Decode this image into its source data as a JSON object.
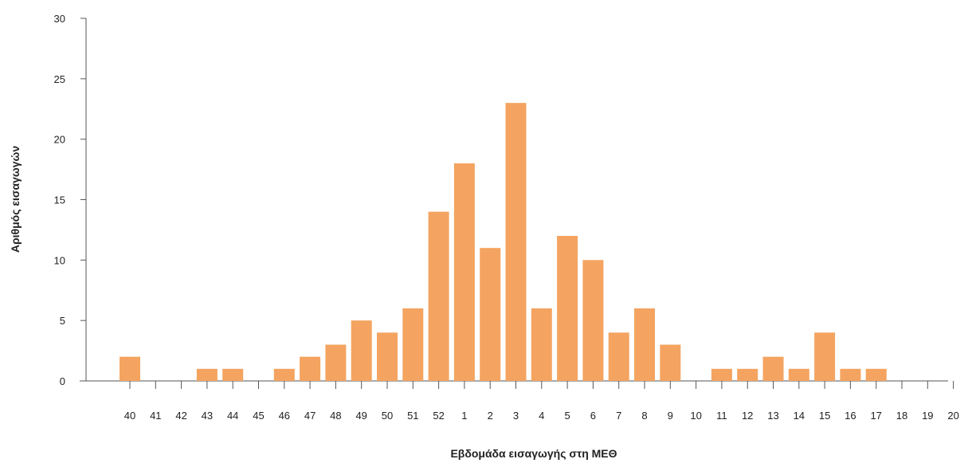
{
  "chart_data": {
    "type": "bar",
    "xlabel": "Εβδομάδα εισαγωγής στη ΜΕΘ",
    "ylabel": "Αριθμός εισαγωγών",
    "ylim": [
      0,
      30
    ],
    "yticks": [
      0,
      5,
      10,
      15,
      20,
      25,
      30
    ],
    "grid": false,
    "bar_color": "#F4A460",
    "categories": [
      "40",
      "41",
      "42",
      "43",
      "44",
      "45",
      "46",
      "47",
      "48",
      "49",
      "50",
      "51",
      "52",
      "1",
      "2",
      "3",
      "4",
      "5",
      "6",
      "7",
      "8",
      "9",
      "10",
      "11",
      "12",
      "13",
      "14",
      "15",
      "16",
      "17",
      "18",
      "19",
      "20"
    ],
    "values": [
      2,
      0,
      0,
      1,
      1,
      0,
      1,
      2,
      3,
      5,
      4,
      6,
      14,
      18,
      11,
      23,
      6,
      12,
      10,
      4,
      6,
      3,
      0,
      1,
      1,
      2,
      1,
      4,
      1,
      1,
      0,
      0,
      0
    ]
  }
}
